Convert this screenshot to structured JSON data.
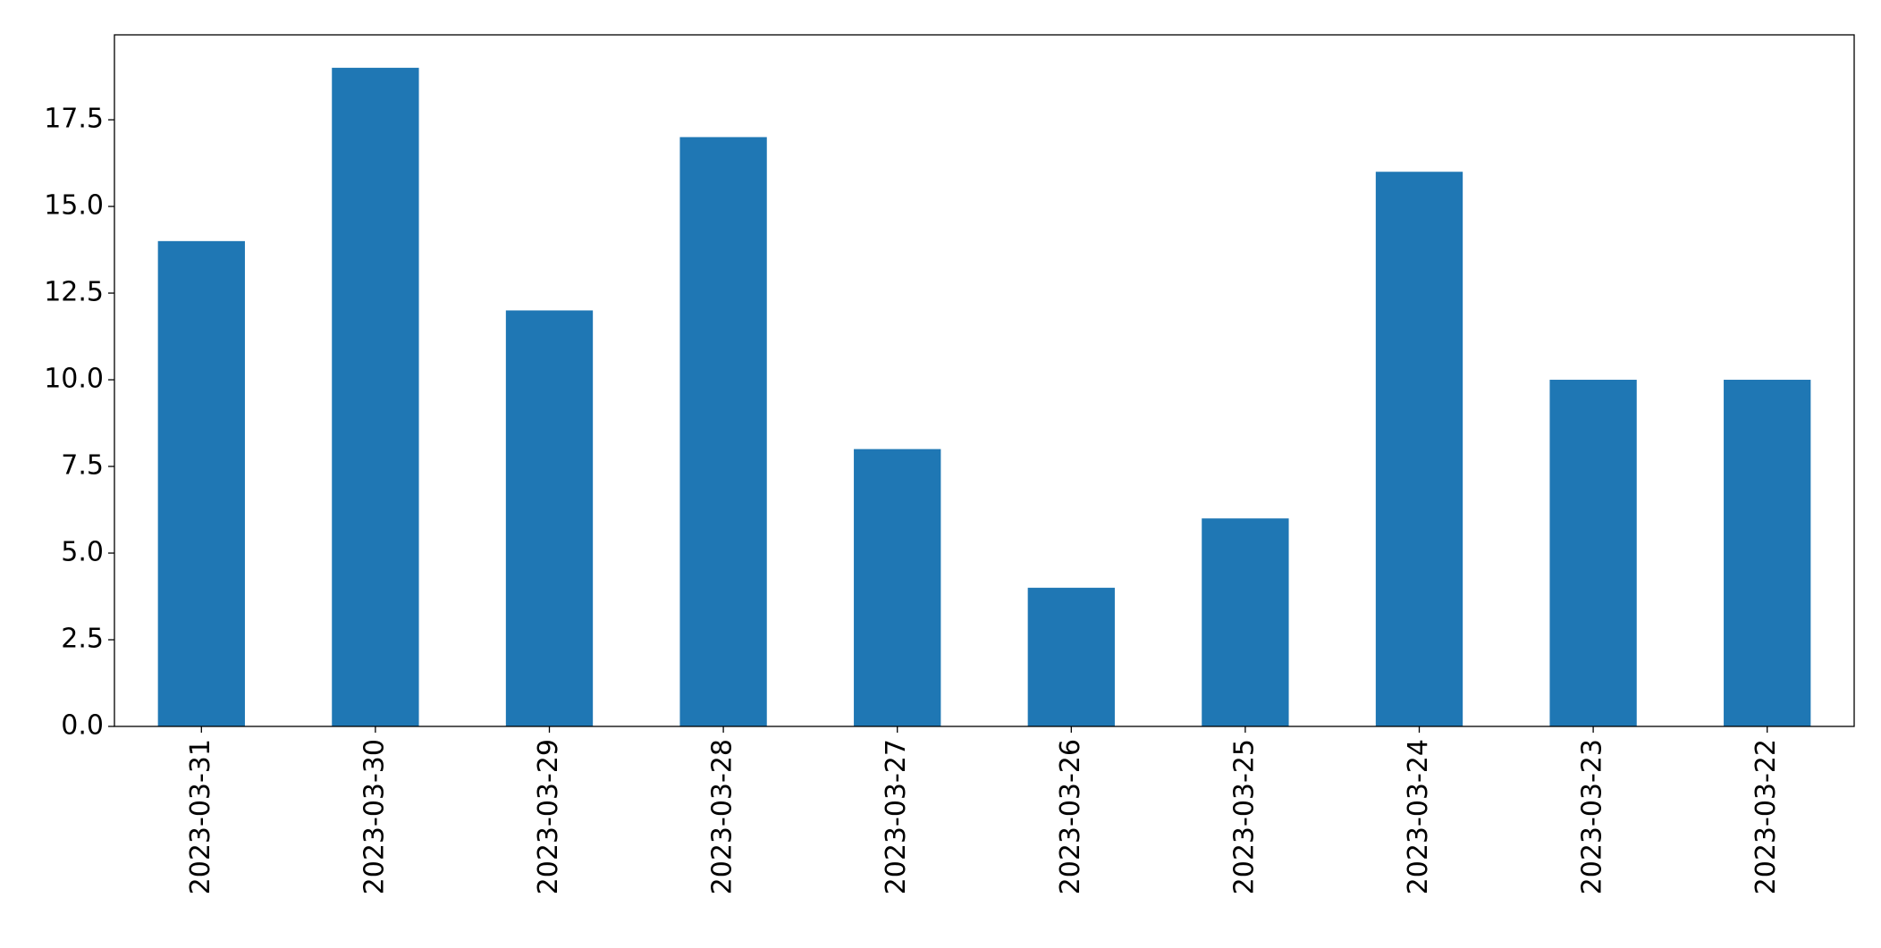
{
  "chart_data": {
    "type": "bar",
    "categories": [
      "2023-03-31",
      "2023-03-30",
      "2023-03-29",
      "2023-03-28",
      "2023-03-27",
      "2023-03-26",
      "2023-03-25",
      "2023-03-24",
      "2023-03-23",
      "2023-03-22"
    ],
    "values": [
      14,
      19,
      12,
      17,
      8,
      4,
      6,
      16,
      10,
      10
    ],
    "color": "#1f77b4",
    "ylim": [
      0,
      19.95
    ],
    "yticks": [
      {
        "value": 0,
        "label": "0.0"
      },
      2.5,
      {
        "value": 5,
        "label": "5.0"
      },
      7.5,
      {
        "value": 10,
        "label": "10.0"
      },
      12.5,
      {
        "value": 15,
        "label": "15.0"
      },
      17.5
    ],
    "grid": false
  }
}
